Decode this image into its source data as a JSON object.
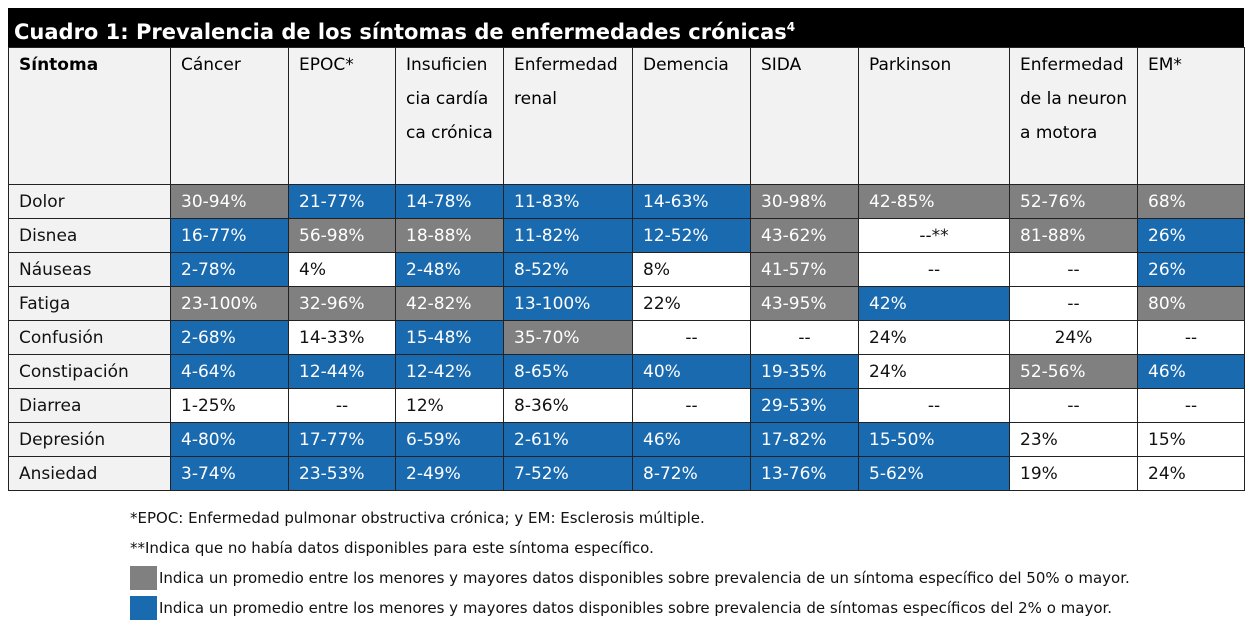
{
  "title": "Cuadro 1: Prevalencia de los síntomas de enfermedades crónicas",
  "title_ref": "4",
  "colors": {
    "high": "#808080",
    "low": "#1a6ab0",
    "header_bg": "#f2f2f2"
  },
  "headers": [
    "Síntoma",
    "Cáncer",
    "EPOC*",
    "Insuficiencia cardíaca crónica",
    "Enfermedad renal",
    "Demencia",
    "SIDA",
    "Parkinson",
    "Enfermedad de la neurona motora",
    "EM*"
  ],
  "rows": [
    {
      "symptom": "Dolor",
      "cells": [
        {
          "v": "30-94%",
          "k": "g"
        },
        {
          "v": "21-77%",
          "k": "b"
        },
        {
          "v": "14-78%",
          "k": "b"
        },
        {
          "v": "11-83%",
          "k": "b"
        },
        {
          "v": "14-63%",
          "k": "b"
        },
        {
          "v": "30-98%",
          "k": "g"
        },
        {
          "v": "42-85%",
          "k": "g"
        },
        {
          "v": "52-76%",
          "k": "g"
        },
        {
          "v": "68%",
          "k": "g"
        }
      ]
    },
    {
      "symptom": "Disnea",
      "cells": [
        {
          "v": "16-77%",
          "k": "b"
        },
        {
          "v": "56-98%",
          "k": "g"
        },
        {
          "v": "18-88%",
          "k": "g"
        },
        {
          "v": "11-82%",
          "k": "b"
        },
        {
          "v": "12-52%",
          "k": "b"
        },
        {
          "v": "43-62%",
          "k": "g"
        },
        {
          "v": "--**",
          "k": "w",
          "c": true
        },
        {
          "v": "81-88%",
          "k": "g"
        },
        {
          "v": "26%",
          "k": "b"
        }
      ]
    },
    {
      "symptom": "Náuseas",
      "cells": [
        {
          "v": "2-78%",
          "k": "b"
        },
        {
          "v": "4%",
          "k": "w"
        },
        {
          "v": "2-48%",
          "k": "b"
        },
        {
          "v": "8-52%",
          "k": "b"
        },
        {
          "v": "8%",
          "k": "w"
        },
        {
          "v": "41-57%",
          "k": "g"
        },
        {
          "v": "--",
          "k": "w",
          "c": true
        },
        {
          "v": "--",
          "k": "w",
          "c": true
        },
        {
          "v": "26%",
          "k": "b"
        }
      ]
    },
    {
      "symptom": "Fatiga",
      "cells": [
        {
          "v": "23-100%",
          "k": "g"
        },
        {
          "v": "32-96%",
          "k": "g"
        },
        {
          "v": "42-82%",
          "k": "g"
        },
        {
          "v": "13-100%",
          "k": "b"
        },
        {
          "v": "22%",
          "k": "w"
        },
        {
          "v": "43-95%",
          "k": "g"
        },
        {
          "v": "42%",
          "k": "b"
        },
        {
          "v": "--",
          "k": "w",
          "c": true
        },
        {
          "v": "80%",
          "k": "g"
        }
      ]
    },
    {
      "symptom": "Confusión",
      "cells": [
        {
          "v": "2-68%",
          "k": "b"
        },
        {
          "v": "14-33%",
          "k": "w"
        },
        {
          "v": "15-48%",
          "k": "b"
        },
        {
          "v": "35-70%",
          "k": "g"
        },
        {
          "v": "--",
          "k": "w",
          "c": true
        },
        {
          "v": "--",
          "k": "w",
          "c": true
        },
        {
          "v": "24%",
          "k": "w"
        },
        {
          "v": "24%",
          "k": "w",
          "c": true
        },
        {
          "v": "--",
          "k": "w",
          "c": true
        }
      ]
    },
    {
      "symptom": "Constipación",
      "cells": [
        {
          "v": "4-64%",
          "k": "b"
        },
        {
          "v": "12-44%",
          "k": "b"
        },
        {
          "v": "12-42%",
          "k": "b"
        },
        {
          "v": "8-65%",
          "k": "b"
        },
        {
          "v": "40%",
          "k": "b"
        },
        {
          "v": "19-35%",
          "k": "b"
        },
        {
          "v": "24%",
          "k": "w"
        },
        {
          "v": "52-56%",
          "k": "g"
        },
        {
          "v": "46%",
          "k": "b"
        }
      ]
    },
    {
      "symptom": "Diarrea",
      "cells": [
        {
          "v": "1-25%",
          "k": "w"
        },
        {
          "v": "--",
          "k": "w",
          "c": true
        },
        {
          "v": "12%",
          "k": "w"
        },
        {
          "v": "8-36%",
          "k": "w"
        },
        {
          "v": "--",
          "k": "w",
          "c": true
        },
        {
          "v": "29-53%",
          "k": "b"
        },
        {
          "v": "--",
          "k": "w",
          "c": true
        },
        {
          "v": "--",
          "k": "w",
          "c": true
        },
        {
          "v": "--",
          "k": "w",
          "c": true
        }
      ]
    },
    {
      "symptom": "Depresión",
      "cells": [
        {
          "v": "4-80%",
          "k": "b"
        },
        {
          "v": "17-77%",
          "k": "b"
        },
        {
          "v": "6-59%",
          "k": "b"
        },
        {
          "v": "2-61%",
          "k": "b"
        },
        {
          "v": "46%",
          "k": "b"
        },
        {
          "v": "17-82%",
          "k": "b"
        },
        {
          "v": "15-50%",
          "k": "b"
        },
        {
          "v": "23%",
          "k": "w"
        },
        {
          "v": "15%",
          "k": "w"
        }
      ]
    },
    {
      "symptom": "Ansiedad",
      "cells": [
        {
          "v": "3-74%",
          "k": "b"
        },
        {
          "v": "23-53%",
          "k": "b"
        },
        {
          "v": "2-49%",
          "k": "b"
        },
        {
          "v": "7-52%",
          "k": "b"
        },
        {
          "v": "8-72%",
          "k": "b"
        },
        {
          "v": "13-76%",
          "k": "b"
        },
        {
          "v": "5-62%",
          "k": "b"
        },
        {
          "v": "19%",
          "k": "w"
        },
        {
          "v": "24%",
          "k": "w"
        }
      ]
    }
  ],
  "notes": {
    "abbrev": "*EPOC: Enfermedad pulmonar obstructiva crónica; y EM: Esclerosis múltiple.",
    "nodata": "**Indica que no había datos disponibles para este síntoma específico.",
    "legend_gray": "Indica un promedio entre los menores y mayores datos disponibles sobre prevalencia de un síntoma específico del 50% o mayor.",
    "legend_blue": "Indica un promedio entre los menores y mayores datos disponibles sobre prevalencia de síntomas específicos del 2% o mayor."
  }
}
